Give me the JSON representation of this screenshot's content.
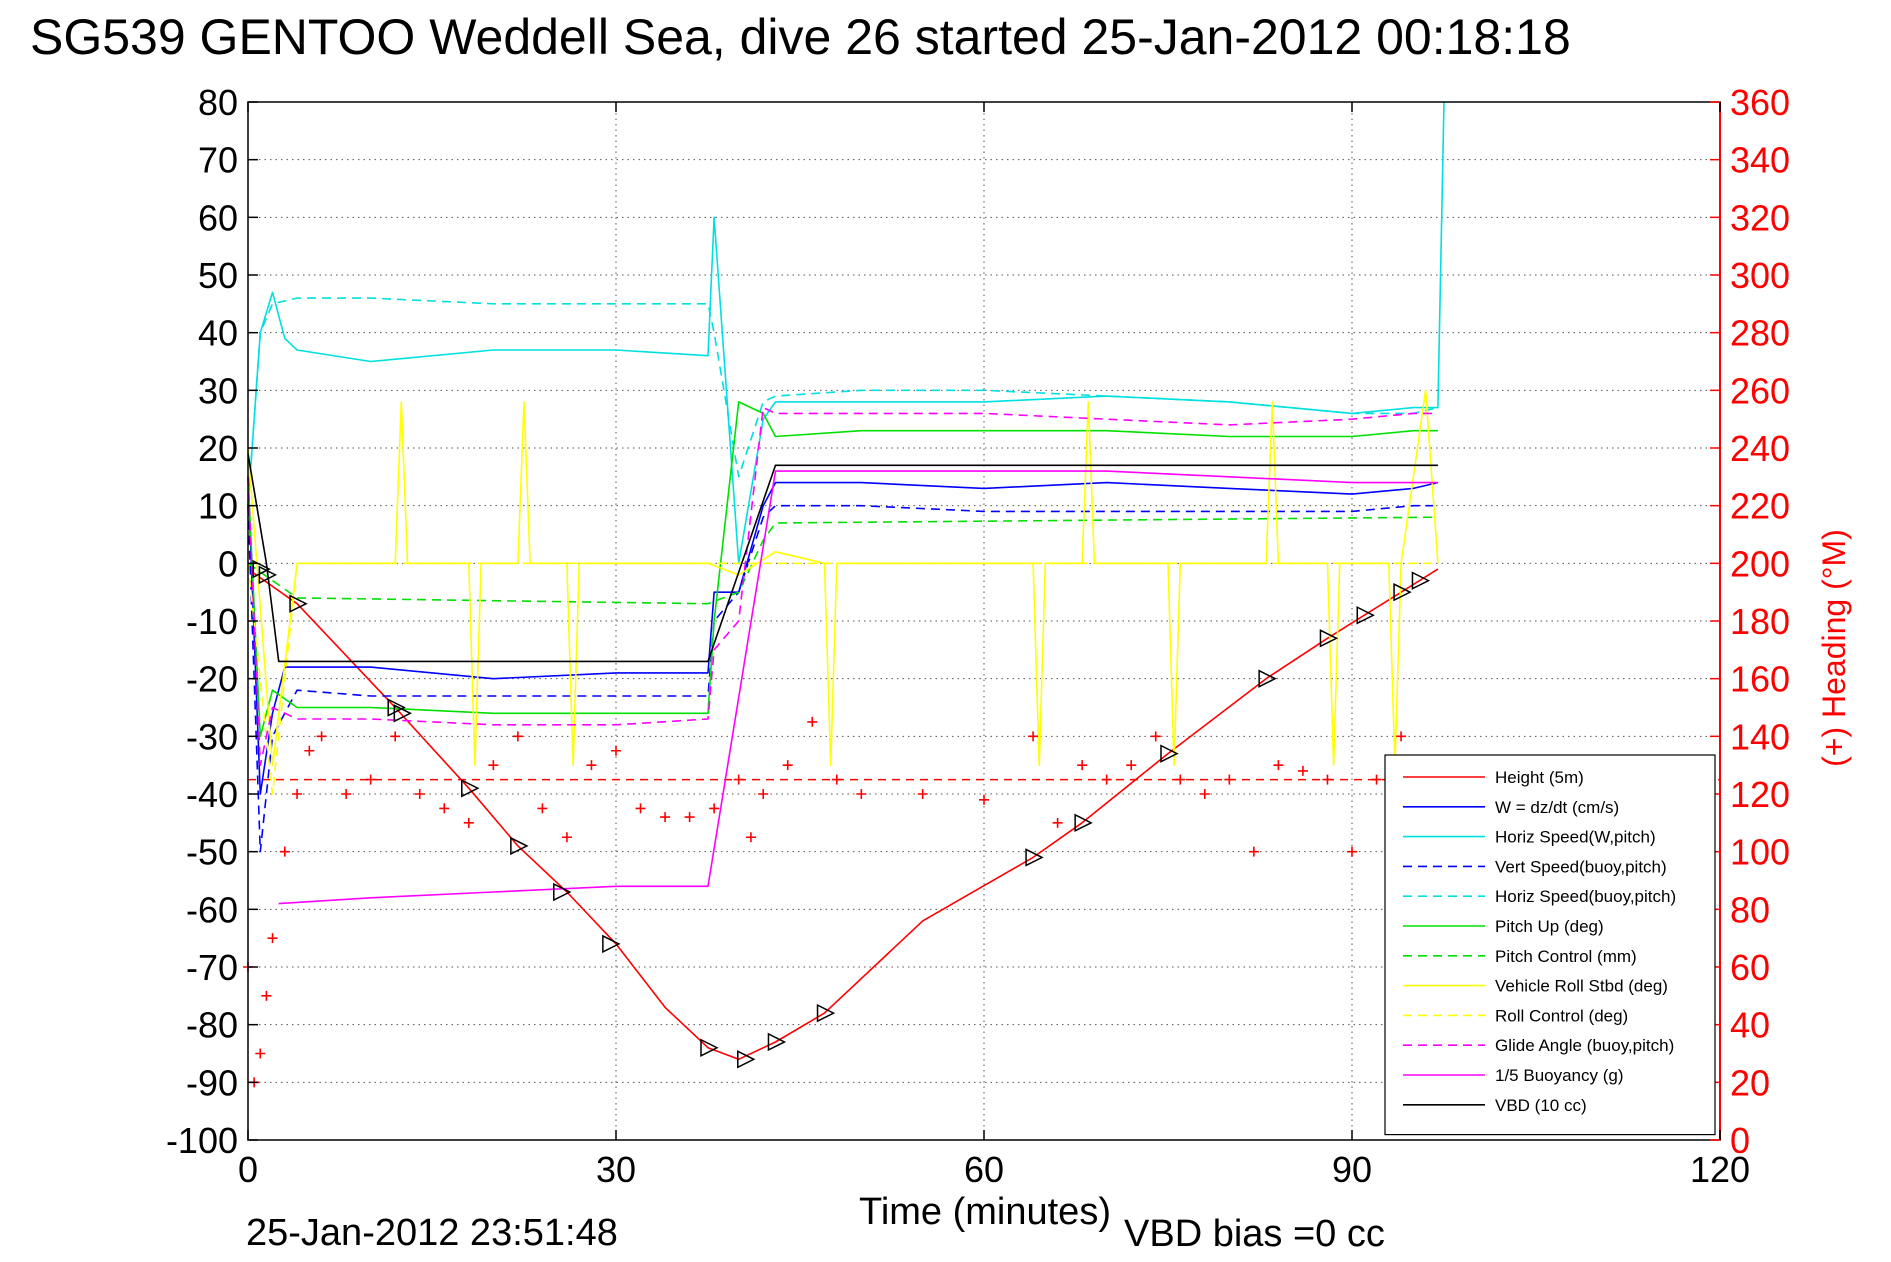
{
  "title": "SG539 GENTOO Weddell Sea, dive 26 started 25-Jan-2012 00:18:18",
  "footer": {
    "timestamp": "25-Jan-2012 23:51:48",
    "vbd_bias": "VBD bias =0 cc"
  },
  "chart_data": {
    "type": "line",
    "title": "SG539 GENTOO Weddell Sea, dive 26 started 25-Jan-2012 00:18:18",
    "xlabel": "Time (minutes)",
    "ylabel": "",
    "y2label": "(+) Heading (°M)",
    "xlim": [
      0,
      120
    ],
    "ylim": [
      -100,
      80
    ],
    "y2lim": [
      0,
      360
    ],
    "xticks": [
      0,
      30,
      60,
      90,
      120
    ],
    "yticks": [
      -100,
      -90,
      -80,
      -70,
      -60,
      -50,
      -40,
      -30,
      -20,
      -10,
      0,
      10,
      20,
      30,
      40,
      50,
      60,
      70,
      80
    ],
    "y2ticks": [
      0,
      20,
      40,
      60,
      80,
      100,
      120,
      140,
      160,
      180,
      200,
      220,
      240,
      260,
      280,
      300,
      320,
      340,
      360
    ],
    "grid": true,
    "legend_position": "lower-right",
    "series": [
      {
        "name": "Height (5m)",
        "color": "#ff0000",
        "dash": "solid",
        "x": [
          0,
          4,
          12,
          18,
          22,
          26,
          30,
          34,
          37.5,
          40,
          43,
          47,
          55,
          64,
          68,
          75,
          83,
          88,
          91,
          94,
          97
        ],
        "y": [
          -1,
          -7,
          -25,
          -39,
          -49,
          -57,
          -66,
          -77,
          -84,
          -86,
          -83,
          -78,
          -62,
          -51,
          -45,
          -33,
          -20,
          -13,
          -9,
          -5,
          -1
        ]
      },
      {
        "name": "W = dz/dt (cm/s)",
        "color": "#0000ff",
        "dash": "solid",
        "x": [
          0,
          1,
          2,
          3,
          4,
          10,
          20,
          30,
          37.5,
          38,
          40,
          42,
          43,
          50,
          60,
          70,
          80,
          90,
          95,
          97
        ],
        "y": [
          15,
          -40,
          -26,
          -18,
          -18,
          -18,
          -20,
          -19,
          -19,
          -5,
          -5,
          10,
          14,
          14,
          13,
          14,
          13,
          12,
          13,
          14
        ]
      },
      {
        "name": "Horiz Speed(W,pitch)",
        "color": "#00e0e0",
        "dash": "solid",
        "x": [
          0,
          1,
          2,
          3,
          4,
          10,
          20,
          30,
          37.5,
          38,
          40,
          42,
          43,
          50,
          60,
          70,
          80,
          90,
          95,
          97,
          97.5
        ],
        "y": [
          10,
          40,
          47,
          39,
          37,
          35,
          37,
          37,
          36,
          60,
          0,
          25,
          28,
          28,
          28,
          29,
          28,
          26,
          27,
          27,
          80
        ]
      },
      {
        "name": "Vert Speed(buoy,pitch)",
        "color": "#0000ff",
        "dash": "dashed",
        "x": [
          0,
          1,
          2,
          4,
          10,
          20,
          30,
          37.5,
          38,
          40,
          42,
          43,
          50,
          60,
          70,
          80,
          90,
          95,
          97
        ],
        "y": [
          10,
          -50,
          -30,
          -22,
          -23,
          -23,
          -23,
          -23,
          -10,
          -5,
          8,
          10,
          10,
          9,
          9,
          9,
          9,
          10,
          10
        ]
      },
      {
        "name": "Horiz Speed(buoy,pitch)",
        "color": "#00e0e0",
        "dash": "dashed",
        "x": [
          0,
          1,
          2,
          4,
          10,
          20,
          30,
          37.5,
          38,
          40,
          42,
          43,
          50,
          60,
          70,
          80,
          90,
          95,
          97
        ],
        "y": [
          10,
          40,
          45,
          46,
          46,
          45,
          45,
          45,
          40,
          15,
          28,
          29,
          30,
          30,
          29,
          28,
          26,
          26,
          27
        ]
      },
      {
        "name": "Pitch Up (deg)",
        "color": "#00e000",
        "dash": "solid",
        "x": [
          0,
          1,
          2,
          4,
          10,
          20,
          30,
          37.5,
          38,
          40,
          42,
          43,
          50,
          60,
          70,
          80,
          90,
          95,
          97
        ],
        "y": [
          15,
          -30,
          -22,
          -25,
          -25,
          -26,
          -26,
          -26,
          -10,
          28,
          26,
          22,
          23,
          23,
          23,
          22,
          22,
          23,
          23
        ]
      },
      {
        "name": "Pitch Control (mm)",
        "color": "#00e000",
        "dash": "dashed",
        "x": [
          0,
          4,
          37.5,
          40,
          42,
          43,
          97
        ],
        "y": [
          0,
          -6,
          -7,
          -5,
          4,
          7,
          8
        ]
      },
      {
        "name": "Vehicle Roll Stbd (deg)",
        "color": "#ffff00",
        "dash": "solid",
        "x": [
          0,
          2,
          4,
          12,
          12.5,
          13,
          18,
          18.5,
          19,
          22,
          22.5,
          23,
          26,
          26.5,
          27,
          30,
          37.5,
          40,
          43,
          47,
          47.5,
          48,
          64,
          64.5,
          65,
          68,
          68.5,
          69,
          75,
          75.5,
          76,
          83,
          83.5,
          84,
          88,
          88.5,
          89,
          93,
          93.5,
          94,
          96,
          97
        ],
        "y": [
          20,
          -35,
          0,
          0,
          28,
          0,
          0,
          -35,
          0,
          0,
          28,
          0,
          0,
          -35,
          0,
          0,
          0,
          -2,
          2,
          0,
          -35,
          0,
          0,
          -35,
          0,
          0,
          28,
          0,
          0,
          -35,
          0,
          0,
          28,
          0,
          0,
          -35,
          0,
          0,
          -35,
          0,
          30,
          0
        ]
      },
      {
        "name": "Roll Control (deg)",
        "color": "#ffff00",
        "dash": "dashed",
        "x": [
          0,
          2,
          4,
          97
        ],
        "y": [
          0,
          -40,
          0,
          0
        ]
      },
      {
        "name": "Glide Angle (buoy,pitch)",
        "color": "#ff00ff",
        "dash": "dashed",
        "x": [
          0,
          1,
          2,
          4,
          10,
          20,
          30,
          37.5,
          38,
          40,
          42,
          43,
          50,
          60,
          70,
          80,
          90,
          95,
          97
        ],
        "y": [
          15,
          -35,
          -25,
          -27,
          -27,
          -28,
          -28,
          -27,
          -15,
          -10,
          27,
          26,
          26,
          26,
          25,
          24,
          25,
          26,
          26
        ]
      },
      {
        "name": "1/5 Buoyancy (g)",
        "color": "#ff00ff",
        "dash": "solid",
        "x": [
          2.5,
          10,
          20,
          30,
          37.5,
          43,
          60,
          70,
          80,
          90,
          97
        ],
        "y": [
          -59,
          -58,
          -57,
          -56,
          -56,
          16,
          16,
          16,
          15,
          14,
          14
        ]
      },
      {
        "name": "VBD (10 cc)",
        "color": "#000000",
        "dash": "solid",
        "x": [
          0,
          1.5,
          2.5,
          37.5,
          43,
          97
        ],
        "y": [
          19,
          0,
          -17,
          -17,
          17,
          17
        ]
      }
    ],
    "heading_series": {
      "name": "(+) Heading (°M)",
      "axis": "right",
      "color": "#ff0000",
      "marker": "+",
      "x": [
        0,
        0.5,
        1,
        1.5,
        2,
        3,
        4,
        5,
        6,
        8,
        10,
        12,
        14,
        16,
        18,
        20,
        22,
        24,
        26,
        28,
        30,
        32,
        34,
        36,
        38,
        40,
        41,
        42,
        44,
        46,
        48,
        50,
        55,
        60,
        64,
        66,
        68,
        70,
        72,
        74,
        76,
        78,
        80,
        82,
        84,
        86,
        88,
        90,
        92,
        94,
        96,
        97
      ],
      "y": [
        60,
        20,
        30,
        50,
        70,
        100,
        120,
        135,
        140,
        120,
        125,
        140,
        120,
        115,
        110,
        130,
        140,
        115,
        105,
        130,
        135,
        115,
        112,
        112,
        115,
        125,
        105,
        120,
        130,
        145,
        125,
        120,
        120,
        118,
        140,
        110,
        130,
        125,
        130,
        140,
        125,
        120,
        125,
        100,
        130,
        128,
        125,
        100,
        125,
        140,
        125,
        130
      ]
    },
    "heading_reference": {
      "color": "#ff0000",
      "dash": "dashed",
      "y2": 125
    },
    "height_markers": {
      "color": "#000000",
      "x": [
        1,
        1.5,
        4,
        12,
        12.5,
        18,
        22,
        25.5,
        29.5,
        37.5,
        40.5,
        43,
        47,
        64,
        68,
        75,
        83,
        88,
        91,
        94,
        95.5
      ],
      "y": [
        -1,
        -2,
        -7,
        -25,
        -26,
        -39,
        -49,
        -57,
        -66,
        -84,
        -86,
        -83,
        -78,
        -51,
        -45,
        -33,
        -20,
        -13,
        -9,
        -5,
        -3
      ]
    }
  }
}
